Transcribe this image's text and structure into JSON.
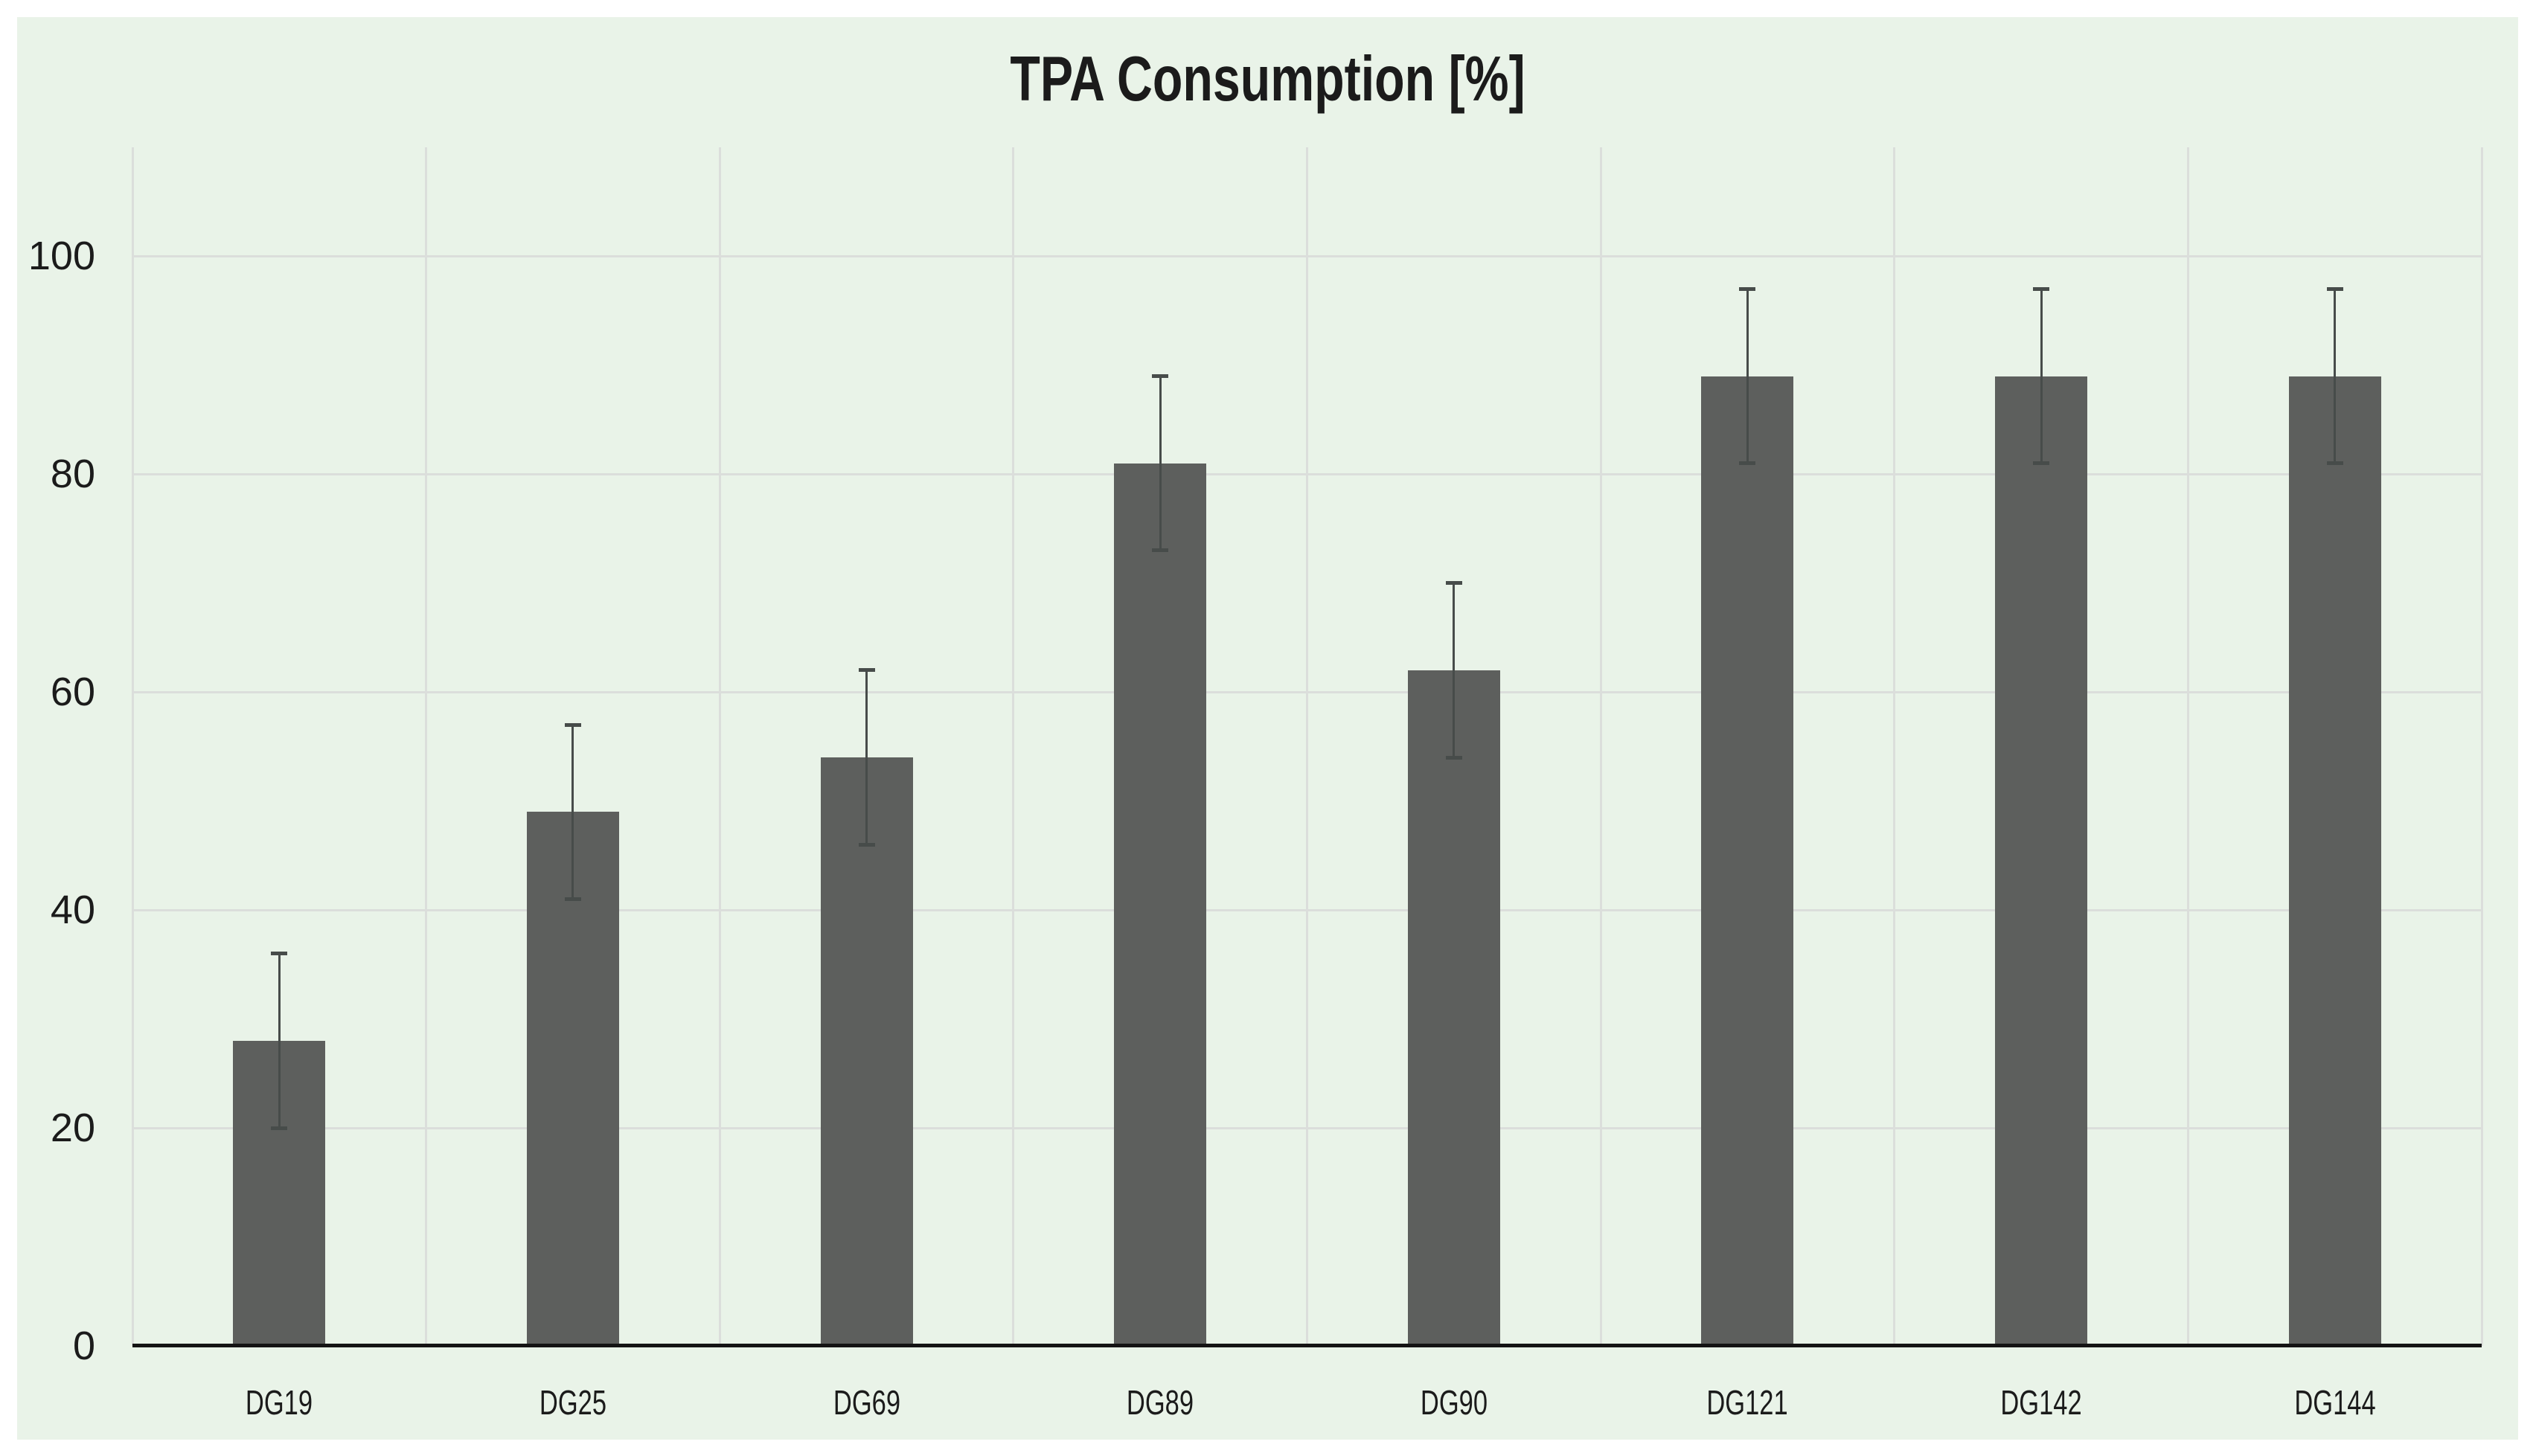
{
  "title": "TPA Consumption [%]",
  "chart_data": {
    "type": "bar",
    "title": "TPA Consumption [%]",
    "categories": [
      "DG19",
      "DG25",
      "DG69",
      "DG89",
      "DG90",
      "DG121",
      "DG142",
      "DG144"
    ],
    "values": [
      28,
      49,
      54,
      81,
      62,
      89,
      89,
      89
    ],
    "error_plus": [
      8,
      8,
      8,
      8,
      8,
      8,
      8,
      8
    ],
    "error_minus": [
      8,
      8,
      8,
      8,
      8,
      8,
      8,
      8
    ],
    "xlabel": "",
    "ylabel": "",
    "yticks": [
      0,
      20,
      40,
      60,
      80,
      100
    ],
    "ylim": [
      0,
      110
    ],
    "grid": true,
    "legend": false,
    "colors": {
      "bar": "#5d5f5d",
      "error_bar": "#474c4a",
      "plot_background": "#e9f3e8",
      "gridline": "#dbdedb",
      "axis_line": "#141414",
      "text": "#1b1b1b",
      "page_background": "#ffffff"
    }
  }
}
